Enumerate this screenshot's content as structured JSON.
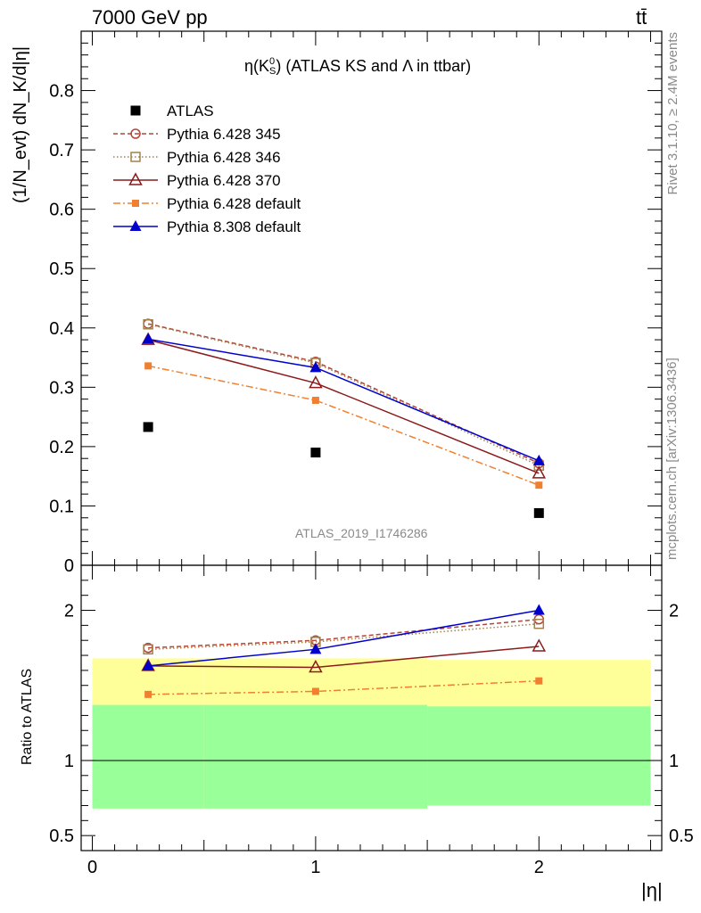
{
  "header": {
    "energy_label": "7000 GeV pp",
    "process_label": "tt̄",
    "plot_title_pre": "η(K",
    "plot_title_sup": "0",
    "plot_title_sub": "S",
    "plot_title_post": ") (ATLAS KS and Λ in ttbar)",
    "analysis_id": "ATLAS_2019_I1746286",
    "rivet_label": "Rivet 3.1.10, ≥ 2.4M events",
    "arxiv_label": "mcplots.cern.ch [arXiv:1306.3436]"
  },
  "axes": {
    "y_main_label": "(1/N_evt) dN_K/d|η|",
    "y_ratio_label": "Ratio to ATLAS",
    "x_label": "|η|"
  },
  "colors": {
    "atlas": "#000000",
    "p345": "#b5443a",
    "p346": "#a3824a",
    "p370": "#8b1a1a",
    "p6def": "#f08030",
    "p8def": "#0000cc",
    "band_outer": "#ffff99",
    "band_inner": "#99ff99"
  },
  "chart_data": [
    {
      "type": "line",
      "panel": "main",
      "x": [
        0.25,
        1.0,
        2.0
      ],
      "xlim": [
        -0.05,
        2.55
      ],
      "ylim": [
        0,
        0.9
      ],
      "yticks": [
        0,
        0.1,
        0.2,
        0.3,
        0.4,
        0.5,
        0.6,
        0.7,
        0.8
      ],
      "xticks": [
        0,
        1,
        2
      ],
      "legend_position": "top-left",
      "series": [
        {
          "name": "ATLAS",
          "marker": "square-filled",
          "values": [
            0.233,
            0.19,
            0.088
          ]
        },
        {
          "name": "Pythia 6.428 345",
          "marker": "circle-open",
          "values": [
            0.407,
            0.343,
            0.172
          ]
        },
        {
          "name": "Pythia 6.428 346",
          "marker": "square-open",
          "values": [
            0.406,
            0.341,
            0.168
          ]
        },
        {
          "name": "Pythia 6.428 370",
          "marker": "triangle-open",
          "values": [
            0.38,
            0.307,
            0.155
          ]
        },
        {
          "name": "Pythia 6.428 default",
          "marker": "square-small",
          "values": [
            0.336,
            0.278,
            0.135
          ]
        },
        {
          "name": "Pythia 8.308 default",
          "marker": "triangle-filled",
          "values": [
            0.381,
            0.333,
            0.176
          ]
        }
      ]
    },
    {
      "type": "line",
      "panel": "ratio",
      "x": [
        0.25,
        1.0,
        2.0
      ],
      "xlim": [
        -0.05,
        2.55
      ],
      "ylim": [
        0.4,
        2.3
      ],
      "yticks": [
        0.5,
        1,
        2
      ],
      "series": [
        {
          "name": "Pythia 6.428 345",
          "values": [
            1.75,
            1.8,
            1.94
          ]
        },
        {
          "name": "Pythia 6.428 346",
          "values": [
            1.74,
            1.79,
            1.91
          ]
        },
        {
          "name": "Pythia 6.428 370",
          "values": [
            1.63,
            1.62,
            1.76
          ]
        },
        {
          "name": "Pythia 6.428 default",
          "values": [
            1.44,
            1.46,
            1.53
          ]
        },
        {
          "name": "Pythia 8.308 default",
          "values": [
            1.63,
            1.74,
            2.0
          ]
        }
      ],
      "bands": [
        {
          "x_range": [
            0,
            0.5
          ],
          "outer": [
            0.68,
            1.68
          ],
          "inner": [
            0.68,
            1.37
          ]
        },
        {
          "x_range": [
            0.5,
            1.5
          ],
          "outer": [
            0.68,
            1.68
          ],
          "inner": [
            0.68,
            1.37
          ]
        },
        {
          "x_range": [
            1.5,
            2.5
          ],
          "outer": [
            0.7,
            1.67
          ],
          "inner": [
            0.7,
            1.36
          ]
        }
      ]
    }
  ]
}
